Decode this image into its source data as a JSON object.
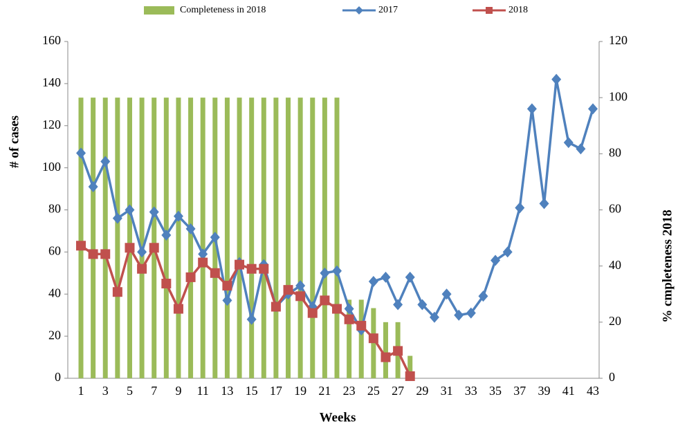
{
  "chart_data": {
    "type": "combo",
    "legend": "top",
    "x_label": "Weeks",
    "y_label": "# of cases",
    "y2_label": "% cmpleteness 2018",
    "categories": [
      1,
      null,
      3,
      null,
      5,
      null,
      7,
      null,
      9,
      null,
      11,
      null,
      13,
      null,
      15,
      null,
      17,
      null,
      19,
      null,
      21,
      null,
      23,
      null,
      25,
      null,
      27,
      null,
      29,
      null,
      31,
      null,
      33,
      null,
      35,
      null,
      37,
      null,
      39,
      null,
      41,
      null,
      43
    ],
    "ylim": [
      0,
      160
    ],
    "yticks": [
      0,
      20,
      40,
      60,
      80,
      100,
      120,
      140,
      160
    ],
    "y2lim": [
      0,
      120
    ],
    "y2ticks": [
      0,
      20,
      40,
      60,
      80,
      100,
      120
    ],
    "series": [
      {
        "name": "Completeness in 2018",
        "type": "bar",
        "axis": "y2",
        "color": "#9bbb59",
        "values": [
          100,
          100,
          100,
          100,
          100,
          100,
          100,
          100,
          100,
          100,
          100,
          100,
          100,
          100,
          100,
          100,
          100,
          100,
          100,
          100,
          100,
          100,
          28,
          28,
          25,
          20,
          20,
          8,
          null,
          null,
          null,
          null,
          null,
          null,
          null,
          null,
          null,
          null,
          null,
          null,
          null,
          null,
          null
        ]
      },
      {
        "name": "2017",
        "type": "line",
        "marker": "diamond",
        "color": "#4f81bd",
        "values": [
          107,
          91,
          103,
          76,
          80,
          60,
          79,
          68,
          77,
          71,
          59,
          67,
          37,
          55,
          28,
          54,
          34,
          40,
          44,
          34,
          50,
          51,
          33,
          23,
          46,
          48,
          35,
          48,
          35,
          29,
          40,
          30,
          31,
          39,
          56,
          60,
          81,
          128,
          83,
          142,
          112,
          109,
          128
        ]
      },
      {
        "name": "2018",
        "type": "line",
        "marker": "square",
        "color": "#c0504d",
        "values": [
          63,
          59,
          59,
          41,
          62,
          52,
          62,
          45,
          33,
          48,
          55,
          50,
          44,
          54,
          52,
          52,
          34,
          42,
          39,
          31,
          37,
          33,
          28,
          25,
          19,
          10,
          13,
          1,
          null,
          null,
          null,
          null,
          null,
          null,
          null,
          null,
          null,
          null,
          null,
          null,
          null,
          null,
          null
        ]
      }
    ]
  }
}
